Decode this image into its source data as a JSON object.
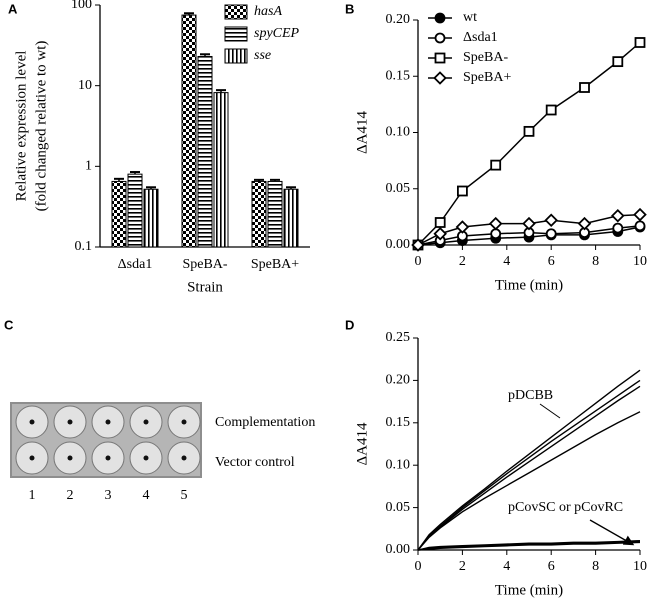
{
  "chart_data": [
    {
      "type": "bar",
      "panel": "A",
      "log": true,
      "ylabel": [
        "Relative expression level",
        "(fold changed relative to wt)"
      ],
      "xlabel": "Strain",
      "categories": [
        "Δsda1",
        "SpeBA-",
        "SpeBA+"
      ],
      "ylim": [
        0.1,
        100
      ],
      "yticks": [
        0.1,
        1,
        10,
        100
      ],
      "series": [
        {
          "name": "hasA",
          "color": "#000000",
          "hatch": "checker",
          "values": [
            0.65,
            75,
            0.65
          ],
          "errors": [
            0.05,
            4,
            0.03
          ]
        },
        {
          "name": "spyCEP",
          "color": "#000000",
          "hatch": "horizontal",
          "values": [
            0.8,
            23,
            0.65
          ],
          "errors": [
            0.05,
            1.5,
            0.03
          ]
        },
        {
          "name": "sse",
          "color": "#000000",
          "hatch": "vertical",
          "values": [
            0.52,
            8.2,
            0.52
          ],
          "errors": [
            0.03,
            0.6,
            0.03
          ]
        }
      ],
      "legend": "top-right"
    },
    {
      "type": "line",
      "panel": "B",
      "ylabel": "ΔA414",
      "xlabel": "Time (min)",
      "x": [
        0,
        1,
        2,
        3.5,
        5,
        6,
        7.5,
        9,
        10
      ],
      "xlim": [
        0,
        10
      ],
      "xticks": [
        0,
        2,
        4,
        6,
        8,
        10
      ],
      "ylim": [
        0,
        0.2
      ],
      "yticks": [
        {
          "value": 0,
          "label": "0.00"
        },
        {
          "value": 0.05,
          "label": "0.05"
        },
        {
          "value": 0.1,
          "label": "0.10"
        },
        {
          "value": 0.15,
          "label": "0.15"
        },
        {
          "value": 0.2,
          "label": "0.20"
        }
      ],
      "series": [
        {
          "name": "wt",
          "color": "#000000",
          "marker": "circle-filled",
          "values": [
            0,
            0.002,
            0.004,
            0.006,
            0.007,
            0.009,
            0.009,
            0.012,
            0.016
          ]
        },
        {
          "name": "Δsda1",
          "color": "#000000",
          "marker": "circle-open",
          "values": [
            0,
            0.004,
            0.008,
            0.01,
            0.011,
            0.01,
            0.011,
            0.015,
            0.017
          ]
        },
        {
          "name": "SpeBA-",
          "color": "#000000",
          "marker": "square-open",
          "values": [
            0,
            0.02,
            0.048,
            0.071,
            0.101,
            0.12,
            0.14,
            0.163,
            0.18
          ]
        },
        {
          "name": "SpeBA+",
          "color": "#000000",
          "marker": "diamond-open",
          "values": [
            0,
            0.01,
            0.016,
            0.019,
            0.019,
            0.022,
            0.019,
            0.026,
            0.027
          ]
        }
      ],
      "legend": "top-left"
    },
    {
      "type": "line",
      "panel": "D",
      "ylabel": "ΔA414",
      "xlabel": "Time (min)",
      "x": [
        0,
        0.5,
        1,
        2,
        3,
        4,
        5,
        6,
        7,
        8,
        9,
        10
      ],
      "xlim": [
        0,
        10
      ],
      "xticks": [
        0,
        2,
        4,
        6,
        8,
        10
      ],
      "ylim": [
        0,
        0.25
      ],
      "yticks": [
        {
          "value": 0,
          "label": "0.00"
        },
        {
          "value": 0.05,
          "label": "0.05"
        },
        {
          "value": 0.1,
          "label": "0.10"
        },
        {
          "value": 0.15,
          "label": "0.15"
        },
        {
          "value": 0.2,
          "label": "0.20"
        },
        {
          "value": 0.25,
          "label": "0.25"
        }
      ],
      "annotations": [
        "pDCBB",
        "pCovSC or pCovRC"
      ],
      "series": [
        {
          "color": "#000000",
          "values": [
            0,
            0.018,
            0.03,
            0.052,
            0.072,
            0.093,
            0.113,
            0.133,
            0.153,
            0.173,
            0.193,
            0.212
          ]
        },
        {
          "color": "#000000",
          "values": [
            0,
            0.017,
            0.028,
            0.05,
            0.07,
            0.09,
            0.109,
            0.128,
            0.146,
            0.164,
            0.182,
            0.2
          ]
        },
        {
          "color": "#000000",
          "values": [
            0,
            0.016,
            0.027,
            0.048,
            0.067,
            0.086,
            0.104,
            0.122,
            0.14,
            0.158,
            0.176,
            0.193
          ]
        },
        {
          "color": "#000000",
          "values": [
            0,
            0.015,
            0.026,
            0.045,
            0.061,
            0.076,
            0.091,
            0.106,
            0.121,
            0.136,
            0.15,
            0.163
          ]
        },
        {
          "color": "#000000",
          "values": [
            0,
            0.002,
            0.003,
            0.004,
            0.005,
            0.006,
            0.007,
            0.007,
            0.008,
            0.008,
            0.009,
            0.01
          ]
        },
        {
          "color": "#000000",
          "values": [
            0,
            0.001,
            0.002,
            0.003,
            0.004,
            0.005,
            0.006,
            0.006,
            0.007,
            0.007,
            0.008,
            0.009
          ]
        },
        {
          "color": "#000000",
          "values": [
            0,
            0.003,
            0.004,
            0.005,
            0.006,
            0.007,
            0.008,
            0.008,
            0.009,
            0.009,
            0.01,
            0.011
          ]
        }
      ]
    }
  ],
  "photo": {
    "panel": "C",
    "rows": [
      "Complementation",
      "Vector control"
    ],
    "columns": [
      "1",
      "2",
      "3",
      "4",
      "5"
    ]
  }
}
